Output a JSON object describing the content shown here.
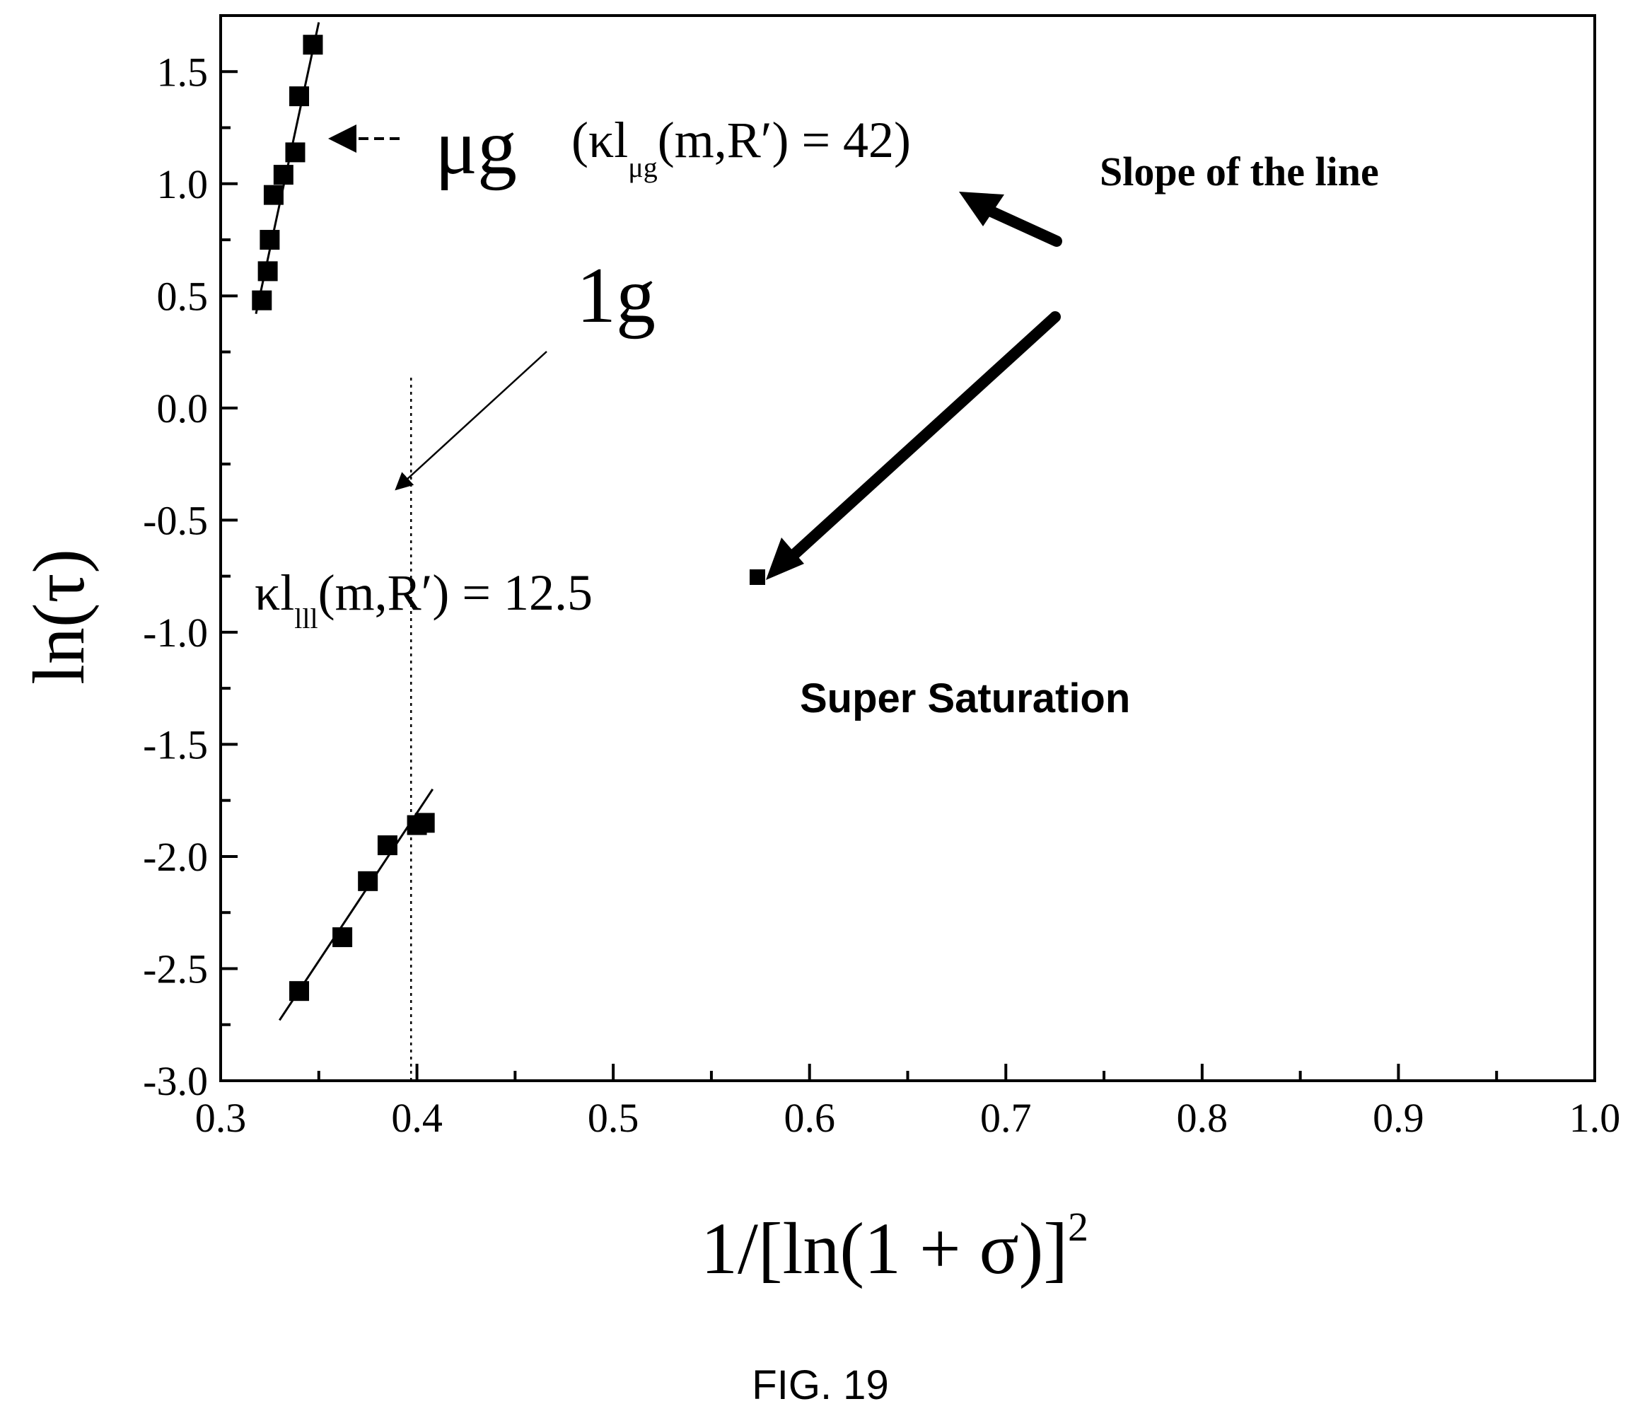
{
  "chart_data": {
    "type": "scatter",
    "x_axis": {
      "label": "1/[ln(1 + σ)]",
      "label_superscript": "2",
      "range": [
        0.3,
        1.0
      ],
      "ticks": [
        "0.3",
        "0.4",
        "0.5",
        "0.6",
        "0.7",
        "0.8",
        "0.9",
        "1.0"
      ]
    },
    "y_axis": {
      "label": "ln(τ)",
      "range": [
        -3.0,
        1.75
      ],
      "ticks": [
        "1.5",
        "1.0",
        "0.5",
        "0.0",
        "-0.5",
        "-1.0",
        "-1.5",
        "-2.0",
        "-2.5",
        "-3.0"
      ]
    },
    "grid": false,
    "legend": "none",
    "series": [
      {
        "name": "μg",
        "marker": "square",
        "x": [
          0.321,
          0.324,
          0.325,
          0.327,
          0.332,
          0.338,
          0.34,
          0.347
        ],
        "y": [
          0.48,
          0.61,
          0.75,
          0.95,
          1.04,
          1.14,
          1.39,
          1.62
        ],
        "fit_line": {
          "x": [
            0.318,
            0.35
          ],
          "y": [
            0.42,
            1.72
          ]
        }
      },
      {
        "name": "1g",
        "marker": "square",
        "x": [
          0.34,
          0.362,
          0.375,
          0.385,
          0.4,
          0.404
        ],
        "y": [
          -2.6,
          -2.36,
          -2.11,
          -1.95,
          -1.86,
          -1.85
        ],
        "fit_line": {
          "x": [
            0.33,
            0.408
          ],
          "y": [
            -2.73,
            -1.7
          ]
        }
      }
    ],
    "reference_line": {
      "x": 0.397,
      "y_range": [
        -3.0,
        0.15
      ],
      "style": "dotted"
    },
    "annotations": {
      "mu_g_label": "μg",
      "mu_g_slope_open": "(κl",
      "mu_g_slope_sub": "μg",
      "mu_g_slope_close": "(m,R′) = 42)",
      "one_g_label": "1g",
      "one_g_slope_open": "κl",
      "one_g_slope_sub": "lll",
      "one_g_slope_close": "(m,R′) = 12.5",
      "slope_note": "Slope of the line",
      "saturation_note": "Super Saturation"
    }
  },
  "caption": "FIG. 19"
}
